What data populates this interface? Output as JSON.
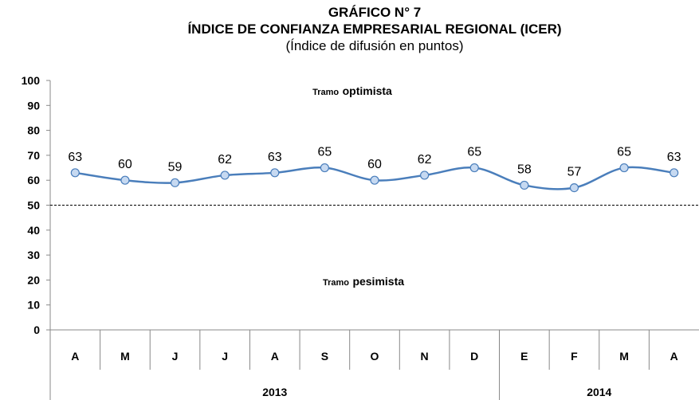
{
  "chart_data": {
    "type": "line",
    "title": "GRÁFICO N° 7",
    "title2": "ÍNDICE  DE CONFIANZA EMPRESARIAL REGIONAL (ICER)",
    "subtitle": "(Índice de difusión en puntos)",
    "categories": [
      "A",
      "M",
      "J",
      "J",
      "A",
      "S",
      "O",
      "N",
      "D",
      "E",
      "F",
      "M",
      "A"
    ],
    "groups": [
      {
        "label": "2013",
        "span": 9
      },
      {
        "label": "2014",
        "span": 4
      }
    ],
    "series": [
      {
        "name": "ICER",
        "color": "#4a7ebb",
        "values": [
          63,
          60,
          59,
          62,
          63,
          65,
          60,
          62,
          65,
          58,
          57,
          65,
          63
        ]
      }
    ],
    "ylim": [
      0,
      100
    ],
    "yticks": [
      0,
      10,
      20,
      30,
      40,
      50,
      60,
      70,
      80,
      90,
      100
    ],
    "reference_line": 50,
    "annotations": [
      [
        "Tramo",
        "optimista"
      ],
      [
        "Tramo",
        "pesimista"
      ]
    ],
    "grid": false,
    "smooth": true
  }
}
